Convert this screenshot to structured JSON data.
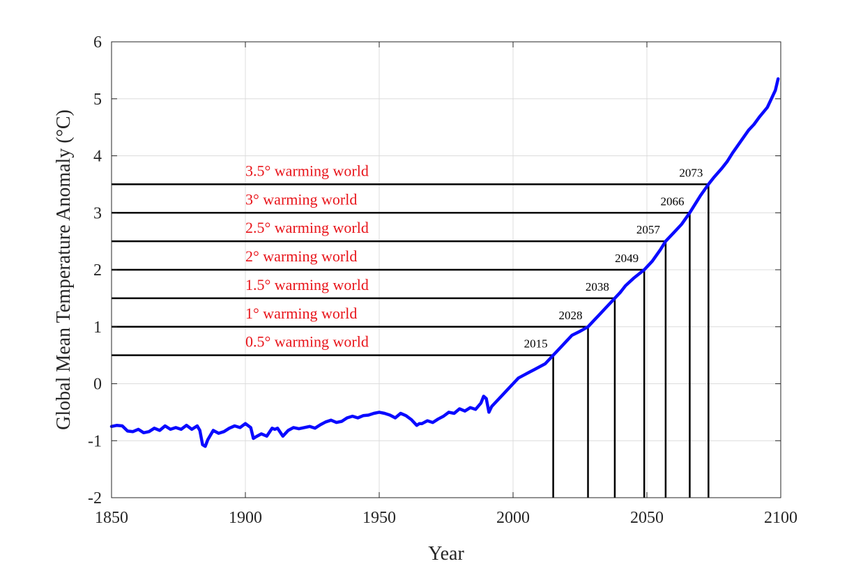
{
  "chart_data": {
    "type": "line",
    "xlabel": "Year",
    "ylabel": "Global Mean Temperature Anomaly (°C)",
    "xlim": [
      1850,
      2100
    ],
    "ylim": [
      -2,
      6
    ],
    "xticks": [
      1850,
      1900,
      1950,
      2000,
      2050,
      2100
    ],
    "xtick_labels": [
      "1850",
      "1900",
      "1950",
      "2000",
      "2050",
      "2100"
    ],
    "yticks": [
      -2,
      -1,
      0,
      1,
      2,
      3,
      4,
      5,
      6
    ],
    "ytick_labels": [
      "-2",
      "-1",
      "0",
      "1",
      "2",
      "3",
      "4",
      "5",
      "6"
    ],
    "grid": true,
    "line_color": "#0a0aff",
    "threshold_color": "#000000",
    "label_color": "#e8141a",
    "series": [
      {
        "x": [
          1850,
          1852,
          1854,
          1856,
          1858,
          1860,
          1862,
          1864,
          1866,
          1868,
          1870,
          1872,
          1874,
          1876,
          1878,
          1880,
          1882,
          1883,
          1884,
          1885,
          1886,
          1888,
          1890,
          1892,
          1894,
          1896,
          1898,
          1900,
          1902,
          1903,
          1904,
          1906,
          1908,
          1910,
          1911,
          1912,
          1914,
          1916,
          1918,
          1920,
          1922,
          1924,
          1926,
          1928,
          1930,
          1932,
          1934,
          1936,
          1938,
          1940,
          1942,
          1944,
          1946,
          1948,
          1950,
          1952,
          1954,
          1956,
          1958,
          1960,
          1962,
          1964,
          1965,
          1966,
          1968,
          1970,
          1972,
          1974,
          1976,
          1978,
          1980,
          1982,
          1984,
          1986,
          1988,
          1989,
          1990,
          1991,
          1992,
          1994,
          1996,
          1998,
          2000,
          2002,
          2004,
          2006,
          2008,
          2010,
          2012,
          2015,
          2018,
          2020,
          2022,
          2025,
          2028,
          2030,
          2032,
          2035,
          2038,
          2040,
          2042,
          2045,
          2049,
          2052,
          2055,
          2057,
          2060,
          2063,
          2066,
          2068,
          2070,
          2073,
          2075,
          2078,
          2080,
          2082,
          2085,
          2088,
          2090,
          2092,
          2095,
          2098,
          2099
        ],
        "y": [
          -0.75,
          -0.73,
          -0.74,
          -0.83,
          -0.84,
          -0.8,
          -0.86,
          -0.84,
          -0.78,
          -0.82,
          -0.74,
          -0.8,
          -0.77,
          -0.8,
          -0.73,
          -0.8,
          -0.74,
          -0.82,
          -1.07,
          -1.1,
          -0.98,
          -0.82,
          -0.87,
          -0.84,
          -0.78,
          -0.74,
          -0.77,
          -0.7,
          -0.77,
          -0.96,
          -0.93,
          -0.88,
          -0.92,
          -0.78,
          -0.8,
          -0.78,
          -0.92,
          -0.82,
          -0.77,
          -0.79,
          -0.77,
          -0.75,
          -0.78,
          -0.72,
          -0.67,
          -0.64,
          -0.68,
          -0.66,
          -0.6,
          -0.57,
          -0.6,
          -0.56,
          -0.55,
          -0.52,
          -0.5,
          -0.52,
          -0.55,
          -0.6,
          -0.52,
          -0.56,
          -0.63,
          -0.73,
          -0.7,
          -0.7,
          -0.65,
          -0.68,
          -0.62,
          -0.57,
          -0.5,
          -0.52,
          -0.44,
          -0.48,
          -0.42,
          -0.45,
          -0.34,
          -0.22,
          -0.26,
          -0.5,
          -0.4,
          -0.3,
          -0.2,
          -0.1,
          0.0,
          0.1,
          0.15,
          0.2,
          0.25,
          0.3,
          0.35,
          0.5,
          0.65,
          0.75,
          0.85,
          0.92,
          1.0,
          1.1,
          1.2,
          1.35,
          1.5,
          1.6,
          1.72,
          1.85,
          2.0,
          2.15,
          2.35,
          2.5,
          2.65,
          2.8,
          3.0,
          3.15,
          3.3,
          3.5,
          3.62,
          3.78,
          3.9,
          4.05,
          4.25,
          4.45,
          4.55,
          4.68,
          4.85,
          5.15,
          5.35
        ]
      }
    ],
    "thresholds": [
      {
        "value": 0.5,
        "year": 2015,
        "label": "0.5° warming world",
        "year_label": "2015"
      },
      {
        "value": 1.0,
        "year": 2028,
        "label": "1° warming world",
        "year_label": "2028"
      },
      {
        "value": 1.5,
        "year": 2038,
        "label": "1.5° warming world",
        "year_label": "2038"
      },
      {
        "value": 2.0,
        "year": 2049,
        "label": "2° warming world",
        "year_label": "2049"
      },
      {
        "value": 2.5,
        "year": 2057,
        "label": "2.5° warming world",
        "year_label": "2057"
      },
      {
        "value": 3.0,
        "year": 2066,
        "label": "3° warming world",
        "year_label": "2066"
      },
      {
        "value": 3.5,
        "year": 2073,
        "label": "3.5° warming world",
        "year_label": "2073"
      }
    ]
  }
}
